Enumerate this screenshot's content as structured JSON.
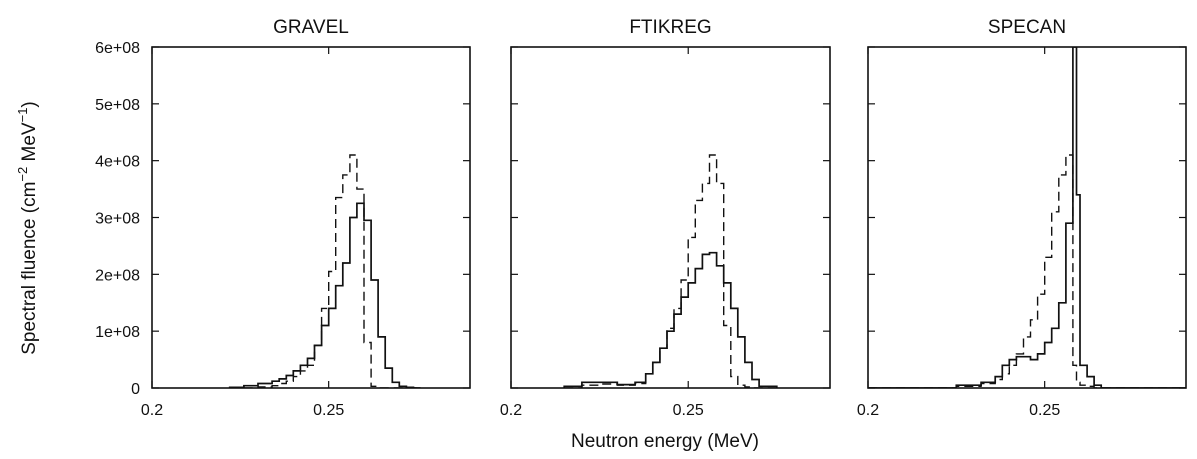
{
  "figure": {
    "xlabel": "Neutron energy (MeV)",
    "ylabel_parts": [
      "Spectral fluence (cm",
      "−2",
      " MeV",
      "−1",
      ")"
    ]
  },
  "chart_data": [
    {
      "type": "line",
      "title": "GRAVEL",
      "xlim": [
        0.2,
        0.29
      ],
      "ylim": [
        0,
        600000000
      ],
      "xticks": [
        0.2,
        0.25
      ],
      "xtick_labels": [
        "0.2",
        "0.25"
      ],
      "yticks": [
        0,
        100000000,
        200000000,
        300000000,
        400000000,
        500000000,
        600000000
      ],
      "ytick_labels": [
        "0",
        "1e+08",
        "2e+08",
        "3e+08",
        "4e+08",
        "5e+08",
        "6e+08"
      ],
      "bin_edges": [
        0.222,
        0.226,
        0.23,
        0.234,
        0.236,
        0.238,
        0.24,
        0.242,
        0.244,
        0.246,
        0.248,
        0.25,
        0.252,
        0.254,
        0.256,
        0.258,
        0.26,
        0.262,
        0.264,
        0.266,
        0.268,
        0.27,
        0.272,
        0.274,
        0.276
      ],
      "series": [
        {
          "style": "solid",
          "values": [
            1000000,
            4000000,
            8000000,
            12000000,
            16000000,
            22000000,
            30000000,
            40000000,
            52000000,
            75000000,
            110000000,
            140000000,
            180000000,
            220000000,
            300000000,
            325000000,
            295000000,
            190000000,
            90000000,
            35000000,
            10000000,
            3000000,
            1000000,
            0
          ]
        },
        {
          "style": "dashed",
          "values": [
            0,
            0,
            2000000,
            4000000,
            8000000,
            12000000,
            20000000,
            30000000,
            40000000,
            75000000,
            140000000,
            205000000,
            335000000,
            375000000,
            410000000,
            350000000,
            80000000,
            3000000,
            0,
            0,
            0,
            0,
            0,
            0
          ]
        }
      ]
    },
    {
      "type": "line",
      "title": "FTIKREG",
      "xlim": [
        0.2,
        0.29
      ],
      "ylim": [
        0,
        600000000
      ],
      "xticks": [
        0.2,
        0.25
      ],
      "xtick_labels": [
        "0.2",
        "0.25"
      ],
      "yticks": [
        0,
        100000000,
        200000000,
        300000000,
        400000000,
        500000000,
        600000000
      ],
      "ytick_labels": [],
      "bin_edges": [
        0.215,
        0.22,
        0.225,
        0.23,
        0.235,
        0.238,
        0.24,
        0.242,
        0.244,
        0.246,
        0.248,
        0.25,
        0.252,
        0.254,
        0.256,
        0.258,
        0.26,
        0.262,
        0.264,
        0.266,
        0.268,
        0.27,
        0.275
      ],
      "series": [
        {
          "style": "solid",
          "values": [
            3000000,
            10000000,
            10000000,
            6000000,
            10000000,
            25000000,
            45000000,
            70000000,
            100000000,
            130000000,
            160000000,
            185000000,
            210000000,
            235000000,
            238000000,
            215000000,
            185000000,
            140000000,
            90000000,
            45000000,
            15000000,
            3000000
          ]
        },
        {
          "style": "dashed",
          "values": [
            0,
            5000000,
            7000000,
            5000000,
            8000000,
            25000000,
            45000000,
            70000000,
            105000000,
            140000000,
            190000000,
            265000000,
            330000000,
            360000000,
            410000000,
            360000000,
            110000000,
            20000000,
            5000000,
            2000000,
            0,
            0
          ]
        }
      ]
    },
    {
      "type": "line",
      "title": "SPECAN",
      "xlim": [
        0.2,
        0.29
      ],
      "ylim": [
        0,
        600000000
      ],
      "xticks": [
        0.2,
        0.25
      ],
      "xtick_labels": [
        "0.2",
        "0.25"
      ],
      "yticks": [
        0,
        100000000,
        200000000,
        300000000,
        400000000,
        500000000,
        600000000
      ],
      "ytick_labels": [],
      "bin_edges": [
        0.2,
        0.225,
        0.232,
        0.236,
        0.238,
        0.24,
        0.242,
        0.244,
        0.246,
        0.248,
        0.25,
        0.252,
        0.254,
        0.256,
        0.258,
        0.259,
        0.26,
        0.262,
        0.264,
        0.266,
        0.29
      ],
      "series": [
        {
          "style": "solid",
          "values": [
            0,
            5000000,
            10000000,
            20000000,
            40000000,
            50000000,
            55000000,
            55000000,
            50000000,
            60000000,
            80000000,
            105000000,
            150000000,
            290000000,
            600000000,
            340000000,
            40000000,
            20000000,
            5000000,
            0
          ]
        },
        {
          "style": "dashed",
          "values": [
            0,
            3000000,
            8000000,
            15000000,
            25000000,
            40000000,
            60000000,
            90000000,
            120000000,
            165000000,
            230000000,
            310000000,
            375000000,
            410000000,
            40000000,
            10000000,
            5000000,
            3000000,
            0,
            0
          ]
        }
      ]
    }
  ]
}
